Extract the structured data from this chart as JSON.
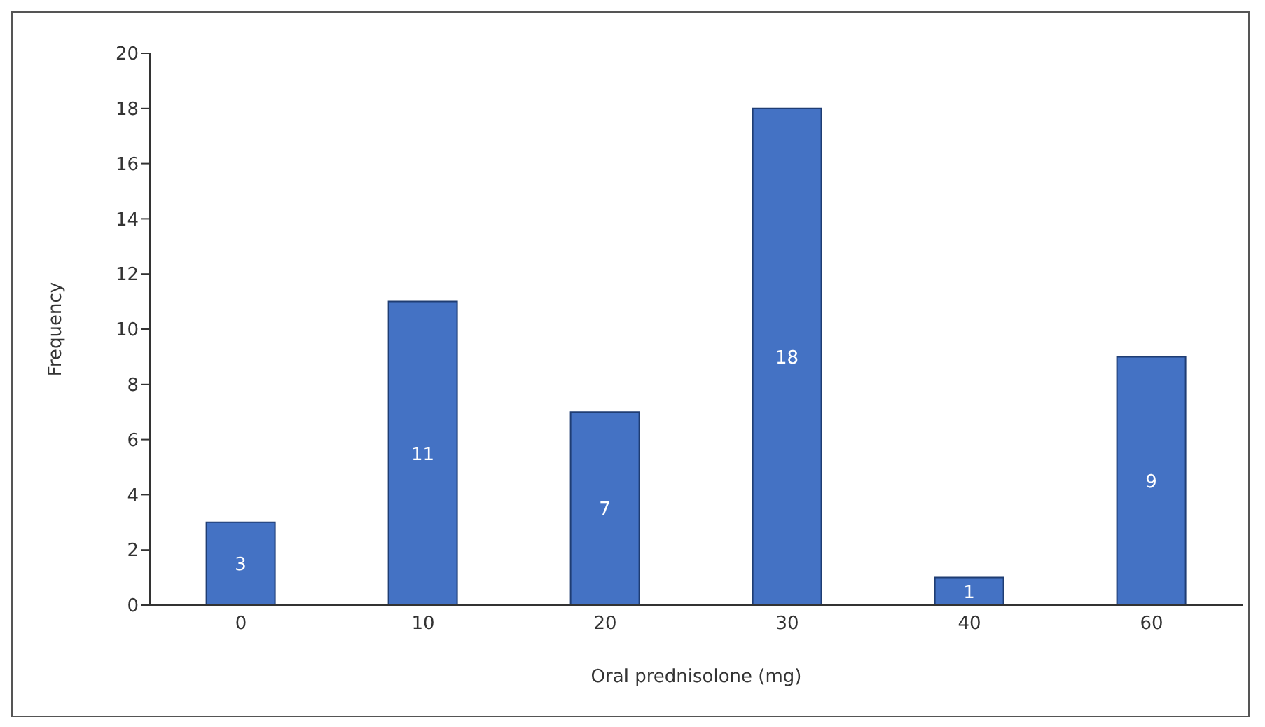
{
  "chart_data": {
    "type": "bar",
    "xlabel": "Oral prednisolone (mg)",
    "ylabel": "Frequency",
    "categories": [
      "0",
      "10",
      "20",
      "30",
      "40",
      "60"
    ],
    "values": [
      3,
      11,
      7,
      18,
      1,
      9
    ],
    "color": "#4472c4",
    "ylim": [
      0,
      20
    ],
    "yticks": [
      0,
      2,
      4,
      6,
      8,
      10,
      12,
      14,
      16,
      18,
      20
    ],
    "grid": false,
    "legend": false,
    "data_labels": true
  }
}
